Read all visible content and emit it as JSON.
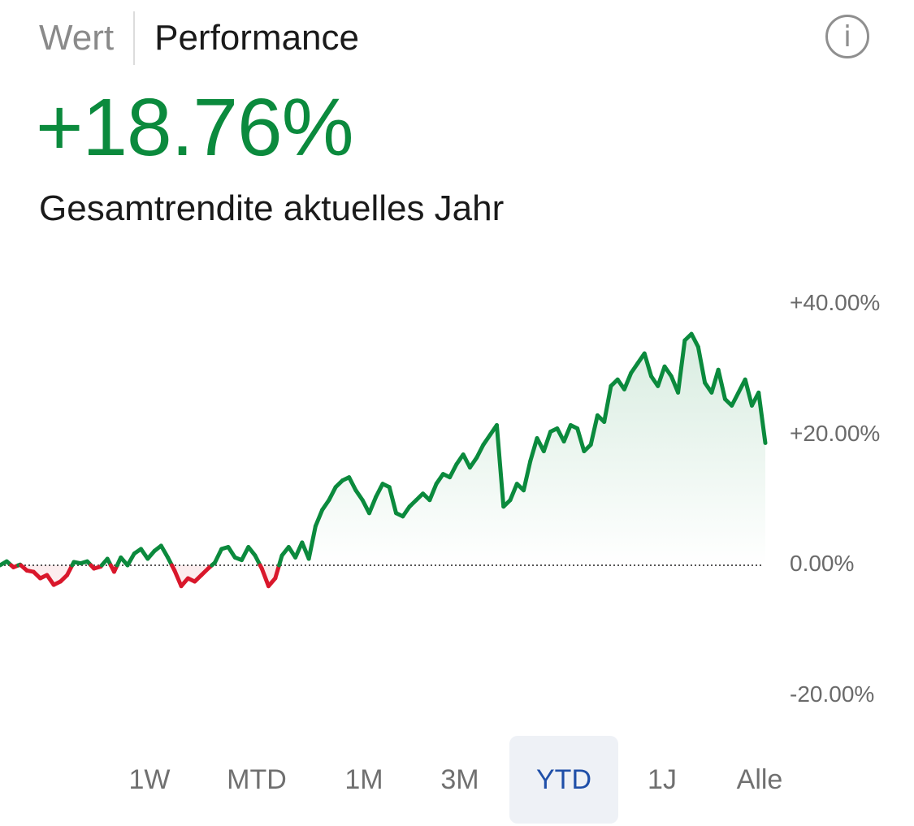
{
  "header": {
    "tabs": [
      {
        "label": "Wert",
        "active": false
      },
      {
        "label": "Performance",
        "active": true
      }
    ],
    "info_icon": "info-icon"
  },
  "summary": {
    "value": "+18.76%",
    "caption": "Gesamtrendite aktuelles Jahr",
    "value_color": "#0b8a3d"
  },
  "range_selector": {
    "options": [
      "1W",
      "MTD",
      "1M",
      "3M",
      "YTD",
      "1J",
      "Alle"
    ],
    "selected": "YTD"
  },
  "colors": {
    "positive": "#0b8a3d",
    "negative": "#d9172b",
    "baseline": "#555555",
    "accent_selected": "#1f4fa8"
  },
  "chart_data": {
    "type": "line",
    "y_unit": "%",
    "ylim": [
      -20,
      40
    ],
    "y_ticks": [
      "+40.00%",
      "+20.00%",
      "0.00%",
      "-20.00%"
    ],
    "y_tick_values": [
      40,
      20,
      0,
      -20
    ],
    "baseline": 0,
    "baseline_style": "dotted",
    "fill": "gradient-under-line",
    "grid": false,
    "series": [
      {
        "values": [
          0.0,
          0.6,
          -0.3,
          0.1,
          -0.8,
          -1.0,
          -2.0,
          -1.5,
          -3.0,
          -2.5,
          -1.5,
          0.5,
          0.3,
          0.6,
          -0.5,
          -0.2,
          1.0,
          -1.0,
          1.2,
          0.0,
          1.8,
          2.5,
          1.0,
          2.2,
          3.0,
          1.2,
          -0.8,
          -3.2,
          -2.0,
          -2.5,
          -1.5,
          -0.5,
          0.4,
          2.5,
          2.8,
          1.2,
          0.8,
          2.8,
          1.5,
          -0.5,
          -3.2,
          -2.0,
          1.5,
          2.8,
          1.2,
          3.5,
          1.0,
          6.0,
          8.5,
          10.0,
          12.0,
          13.0,
          13.5,
          11.5,
          10.0,
          8.0,
          10.5,
          12.5,
          12.0,
          8.0,
          7.5,
          9.0,
          10.0,
          11.0,
          10.0,
          12.5,
          14.0,
          13.5,
          15.5,
          17.0,
          15.0,
          16.5,
          18.5,
          20.0,
          21.5,
          9.0,
          10.0,
          12.5,
          11.5,
          16.0,
          19.5,
          17.5,
          20.5,
          21.0,
          19.0,
          21.5,
          21.0,
          17.5,
          18.5,
          23.0,
          22.0,
          27.5,
          28.5,
          27.0,
          29.5,
          31.0,
          32.5,
          29.0,
          27.5,
          30.5,
          29.0,
          26.5,
          34.5,
          35.5,
          33.5,
          28.0,
          26.5,
          30.0,
          25.5,
          24.5,
          26.5,
          28.5,
          24.5,
          26.5,
          18.76
        ]
      }
    ]
  }
}
